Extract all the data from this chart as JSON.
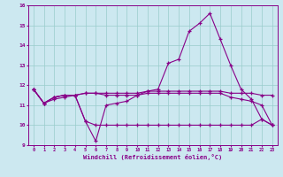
{
  "xlabel": "Windchill (Refroidissement éolien,°C)",
  "ylabel": "",
  "background_color": "#cce8f0",
  "line_color": "#880088",
  "grid_color": "#99cccc",
  "xlim": [
    -0.5,
    23.5
  ],
  "ylim": [
    9,
    16
  ],
  "yticks": [
    9,
    10,
    11,
    12,
    13,
    14,
    15,
    16
  ],
  "xticks": [
    0,
    1,
    2,
    3,
    4,
    5,
    6,
    7,
    8,
    9,
    10,
    11,
    12,
    13,
    14,
    15,
    16,
    17,
    18,
    19,
    20,
    21,
    22,
    23
  ],
  "series": {
    "line1": [
      11.8,
      11.1,
      11.3,
      11.4,
      11.5,
      10.2,
      9.2,
      11.0,
      11.1,
      11.2,
      11.5,
      11.7,
      11.8,
      13.1,
      13.3,
      14.7,
      15.1,
      15.6,
      14.3,
      13.0,
      11.8,
      11.3,
      10.3,
      10.0
    ],
    "line2": [
      11.8,
      11.1,
      11.4,
      11.5,
      11.5,
      11.6,
      11.6,
      11.6,
      11.6,
      11.6,
      11.6,
      11.7,
      11.7,
      11.7,
      11.7,
      11.7,
      11.7,
      11.7,
      11.7,
      11.6,
      11.6,
      11.6,
      11.5,
      11.5
    ],
    "line3": [
      11.8,
      11.1,
      11.4,
      11.5,
      11.5,
      11.6,
      11.6,
      11.5,
      11.5,
      11.5,
      11.5,
      11.6,
      11.6,
      11.6,
      11.6,
      11.6,
      11.6,
      11.6,
      11.6,
      11.4,
      11.3,
      11.2,
      11.0,
      10.0
    ],
    "line4": [
      11.8,
      11.1,
      11.4,
      11.5,
      11.5,
      10.2,
      10.0,
      10.0,
      10.0,
      10.0,
      10.0,
      10.0,
      10.0,
      10.0,
      10.0,
      10.0,
      10.0,
      10.0,
      10.0,
      10.0,
      10.0,
      10.0,
      10.3,
      10.0
    ]
  }
}
